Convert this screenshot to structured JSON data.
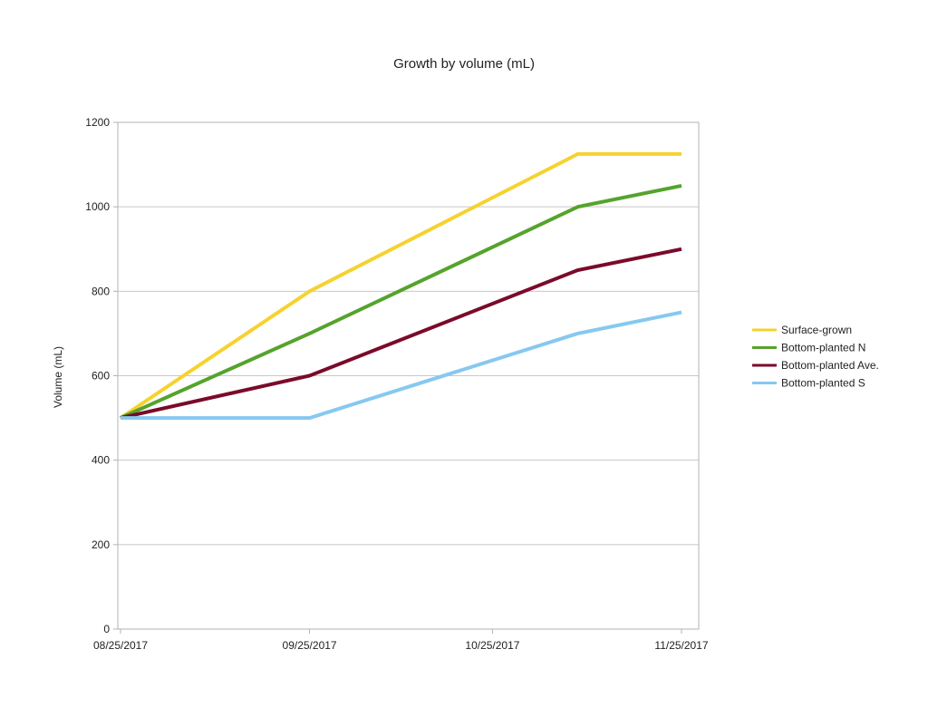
{
  "chart_data": {
    "type": "line",
    "title": "Growth by volume (mL)",
    "xlabel": "",
    "ylabel": "Volume (mL)",
    "x_axis": {
      "type": "date",
      "range": [
        "2017-08-25",
        "2017-11-25"
      ],
      "ticks": [
        {
          "date": "2017-08-25",
          "label": "08/25/2017"
        },
        {
          "date": "2017-09-25",
          "label": "09/25/2017"
        },
        {
          "date": "2017-10-25",
          "label": "10/25/2017"
        },
        {
          "date": "2017-11-25",
          "label": "11/25/2017"
        }
      ]
    },
    "y_axis": {
      "range": [
        0,
        1200
      ],
      "ticks": [
        0,
        200,
        400,
        600,
        800,
        1000,
        1200
      ]
    },
    "ylim": [
      0,
      1200
    ],
    "grid": "horizontal",
    "legend_position": "right",
    "x": [
      "2017-08-25",
      "2017-09-25",
      "2017-11-08",
      "2017-11-25"
    ],
    "series": [
      {
        "name": "Surface-grown",
        "color": "#f6d22f",
        "values": [
          500,
          800,
          1125,
          1125
        ]
      },
      {
        "name": "Bottom-planted N",
        "color": "#55a32c",
        "values": [
          500,
          700,
          1000,
          1050
        ]
      },
      {
        "name": "Bottom-planted Ave.",
        "color": "#7b0a2a",
        "values": [
          500,
          600,
          850,
          900
        ]
      },
      {
        "name": "Bottom-planted S",
        "color": "#86c8f0",
        "values": [
          500,
          500,
          700,
          750
        ]
      }
    ]
  }
}
